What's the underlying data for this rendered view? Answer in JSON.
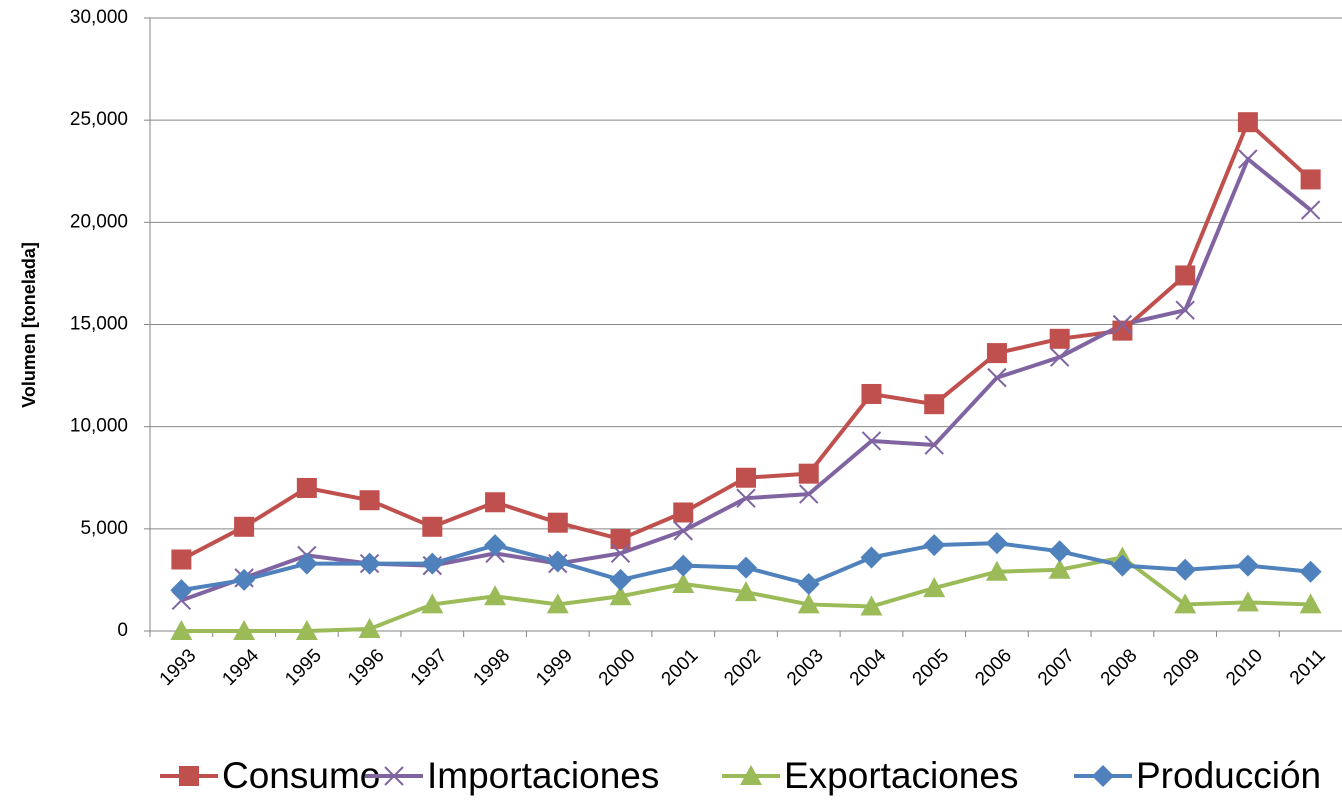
{
  "chart_data": {
    "type": "line",
    "y_label": "Volumen [tonelada]",
    "categories": [
      "1993",
      "1994",
      "1995",
      "1996",
      "1997",
      "1998",
      "1999",
      "2000",
      "2001",
      "2002",
      "2003",
      "2004",
      "2005",
      "2006",
      "2007",
      "2008",
      "2009",
      "2010",
      "2011"
    ],
    "series": [
      {
        "name": "Consumo",
        "color": "#C0504D",
        "marker": "square",
        "values": [
          3500,
          5100,
          7000,
          6400,
          5100,
          6300,
          5300,
          4500,
          5800,
          7500,
          7700,
          11600,
          11100,
          13600,
          14300,
          14700,
          17400,
          24900,
          22100
        ]
      },
      {
        "name": "Importaciones",
        "color": "#8064A2",
        "marker": "x",
        "values": [
          1500,
          2600,
          3700,
          3300,
          3200,
          3800,
          3300,
          3800,
          4900,
          6500,
          6700,
          9300,
          9100,
          12400,
          13400,
          15000,
          15700,
          23100,
          20600
        ]
      },
      {
        "name": "Exportaciones",
        "color": "#9BBB59",
        "marker": "triangle",
        "values": [
          0,
          0,
          0,
          100,
          1300,
          1700,
          1300,
          1700,
          2300,
          1900,
          1300,
          1200,
          2100,
          2900,
          3000,
          3600,
          1300,
          1400,
          1300
        ]
      },
      {
        "name": "Producción",
        "color": "#4F81BD",
        "marker": "diamond",
        "values": [
          2000,
          2500,
          3300,
          3300,
          3300,
          4200,
          3400,
          2500,
          3200,
          3100,
          2300,
          3600,
          4200,
          4300,
          3900,
          3200,
          3000,
          3200,
          2900
        ]
      }
    ],
    "ylim": [
      0,
      30000
    ],
    "yticks": [
      0,
      {
        "value": 5000,
        "label": "5,000"
      },
      {
        "value": 10000,
        "label": "10,000"
      },
      {
        "value": 15000,
        "label": "15,000"
      },
      {
        "value": 20000,
        "label": "20,000"
      },
      {
        "value": 25000,
        "label": "25,000"
      },
      {
        "value": 30000,
        "label": "30,000"
      }
    ],
    "grid": true,
    "legend": "bottom"
  }
}
